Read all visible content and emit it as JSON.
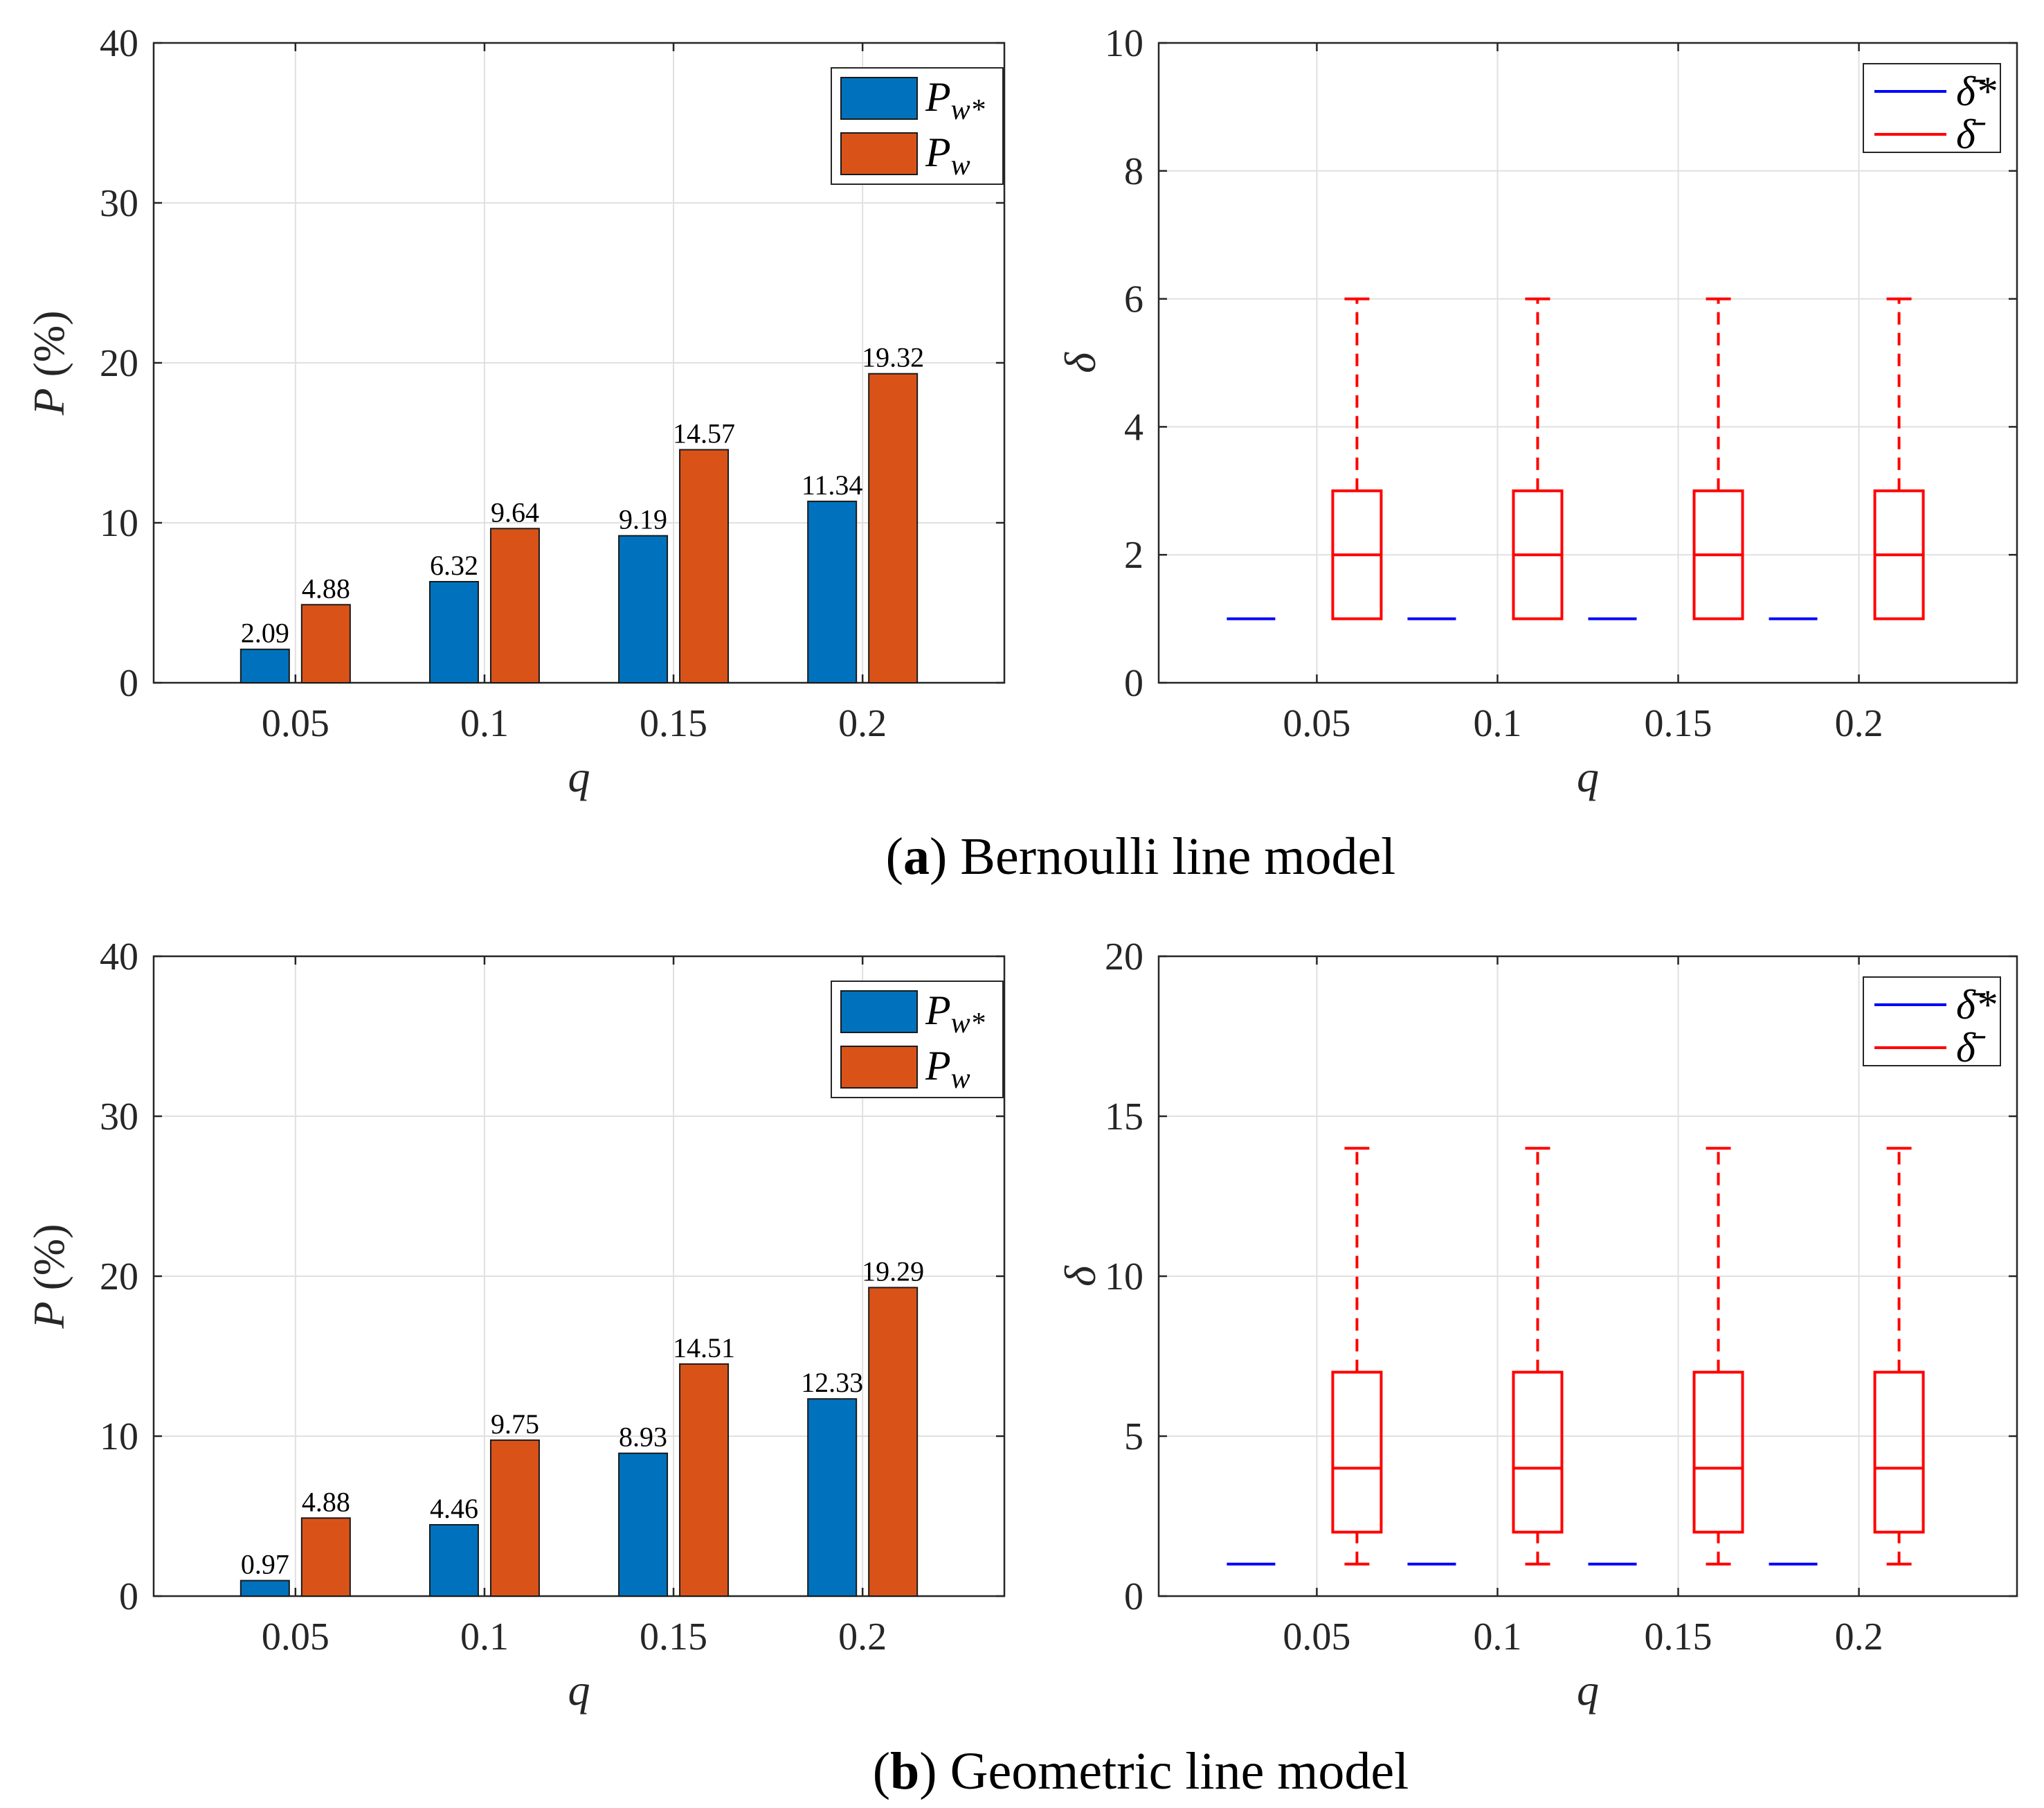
{
  "colors": {
    "pw_star": "#0072BD",
    "pw": "#D95319",
    "delta_star": "#0000FF",
    "delta": "#FF0000"
  },
  "captions": [
    {
      "letter": "a",
      "text": "Bernoulli line model"
    },
    {
      "letter": "b",
      "text": "Geometric line model"
    }
  ],
  "chart_data": [
    {
      "type": "bar",
      "panel": "a-left",
      "categories": [
        "0.05",
        "0.1",
        "0.15",
        "0.2"
      ],
      "series": [
        {
          "name": "P_{w*}",
          "values": [
            2.09,
            6.32,
            9.19,
            11.34
          ],
          "labels": [
            "2.09",
            "6.32",
            "9.19",
            "11.34"
          ]
        },
        {
          "name": "P_w",
          "values": [
            4.88,
            9.64,
            14.57,
            19.32
          ],
          "labels": [
            "4.88",
            "9.64",
            "14.57",
            "19.32"
          ]
        }
      ],
      "xlabel": "q",
      "ylabel_var": "P",
      "ylabel_unit": "(%)",
      "ylim": [
        0,
        40
      ],
      "yticks": [
        "0",
        "10",
        "20",
        "30",
        "40"
      ],
      "legend": {
        "entries": [
          {
            "base": "P",
            "sub": "w*"
          },
          {
            "base": "P",
            "sub": "w"
          }
        ],
        "position": "top-right"
      },
      "grid": true
    },
    {
      "type": "box",
      "panel": "a-right",
      "categories": [
        "0.05",
        "0.1",
        "0.15",
        "0.2"
      ],
      "delta_star": [
        1,
        1,
        1,
        1
      ],
      "delta_box": [
        {
          "min": 1,
          "q1": 1,
          "median": 2,
          "q3": 3,
          "max": 6
        },
        {
          "min": 1,
          "q1": 1,
          "median": 2,
          "q3": 3,
          "max": 6
        },
        {
          "min": 1,
          "q1": 1,
          "median": 2,
          "q3": 3,
          "max": 6
        },
        {
          "min": 1,
          "q1": 1,
          "median": 2,
          "q3": 3,
          "max": 6
        }
      ],
      "xlabel": "q",
      "ylabel": "δ",
      "ylim": [
        0,
        10
      ],
      "yticks": [
        "0",
        "2",
        "4",
        "6",
        "8",
        "10"
      ],
      "legend": {
        "entries": [
          "δ̄*",
          "δ̄"
        ],
        "position": "top-right"
      },
      "grid": true
    },
    {
      "type": "bar",
      "panel": "b-left",
      "categories": [
        "0.05",
        "0.1",
        "0.15",
        "0.2"
      ],
      "series": [
        {
          "name": "P_{w*}",
          "values": [
            0.97,
            4.46,
            8.93,
            12.33
          ],
          "labels": [
            "0.97",
            "4.46",
            "8.93",
            "12.33"
          ]
        },
        {
          "name": "P_w",
          "values": [
            4.88,
            9.75,
            14.51,
            19.29
          ],
          "labels": [
            "4.88",
            "9.75",
            "14.51",
            "19.29"
          ]
        }
      ],
      "xlabel": "q",
      "ylabel_var": "P",
      "ylabel_unit": "(%)",
      "ylim": [
        0,
        40
      ],
      "yticks": [
        "0",
        "10",
        "20",
        "30",
        "40"
      ],
      "legend": {
        "entries": [
          {
            "base": "P",
            "sub": "w*"
          },
          {
            "base": "P",
            "sub": "w"
          }
        ],
        "position": "top-right"
      },
      "grid": true
    },
    {
      "type": "box",
      "panel": "b-right",
      "categories": [
        "0.05",
        "0.1",
        "0.15",
        "0.2"
      ],
      "delta_star": [
        1,
        1,
        1,
        1
      ],
      "delta_box": [
        {
          "min": 1,
          "q1": 2,
          "median": 4,
          "q3": 7,
          "max": 14
        },
        {
          "min": 1,
          "q1": 2,
          "median": 4,
          "q3": 7,
          "max": 14
        },
        {
          "min": 1,
          "q1": 2,
          "median": 4,
          "q3": 7,
          "max": 14
        },
        {
          "min": 1,
          "q1": 2,
          "median": 4,
          "q3": 7,
          "max": 14
        }
      ],
      "xlabel": "q",
      "ylabel": "δ",
      "ylim": [
        0,
        20
      ],
      "yticks": [
        "0",
        "5",
        "10",
        "15",
        "20"
      ],
      "legend": {
        "entries": [
          "δ̄*",
          "δ̄"
        ],
        "position": "top-right"
      },
      "grid": true
    }
  ]
}
